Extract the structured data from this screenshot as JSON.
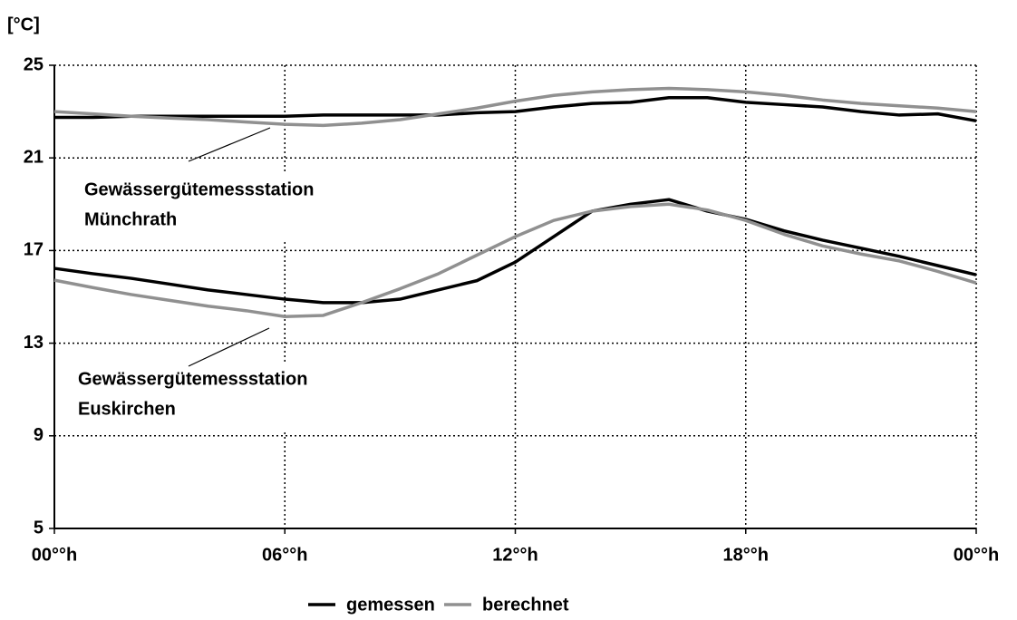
{
  "chart_data": {
    "type": "line",
    "y_label": "[°C]",
    "x": [
      0,
      1,
      2,
      3,
      4,
      5,
      6,
      7,
      8,
      9,
      10,
      11,
      12,
      13,
      14,
      15,
      16,
      17,
      18,
      19,
      20,
      21,
      22,
      23,
      24
    ],
    "series": [
      {
        "name": "gemessen",
        "color": "#000000",
        "values": [
          22.75,
          22.75,
          22.8,
          22.8,
          22.8,
          22.8,
          22.8,
          22.85,
          22.85,
          22.85,
          22.85,
          22.95,
          23.0,
          23.2,
          23.35,
          23.4,
          23.6,
          23.6,
          23.4,
          23.3,
          23.2,
          23.0,
          22.85,
          22.9,
          22.6
        ]
      },
      {
        "name": "berechnet",
        "color": "#909090",
        "values": [
          23.0,
          22.9,
          22.8,
          22.72,
          22.65,
          22.55,
          22.45,
          22.4,
          22.5,
          22.65,
          22.9,
          23.15,
          23.45,
          23.7,
          23.85,
          23.95,
          24.0,
          23.95,
          23.85,
          23.7,
          23.5,
          23.35,
          23.25,
          23.15,
          23.0
        ]
      },
      {
        "name": "gemessen",
        "color": "#000000",
        "values": [
          16.23,
          16.0,
          15.8,
          15.55,
          15.3,
          15.1,
          14.9,
          14.75,
          14.75,
          14.9,
          15.3,
          15.7,
          16.5,
          17.6,
          18.7,
          19.0,
          19.2,
          18.7,
          18.35,
          17.85,
          17.45,
          17.1,
          16.75,
          16.35,
          15.95
        ]
      },
      {
        "name": "berechnet",
        "color": "#909090",
        "values": [
          15.72,
          15.4,
          15.1,
          14.85,
          14.6,
          14.4,
          14.15,
          14.2,
          14.75,
          15.35,
          16.0,
          16.8,
          17.6,
          18.3,
          18.7,
          18.9,
          19.0,
          18.75,
          18.3,
          17.7,
          17.2,
          16.85,
          16.55,
          16.1,
          15.6
        ]
      }
    ],
    "annotations": [
      {
        "lines": [
          "Gewässergütemessstation",
          "Münchrath"
        ]
      },
      {
        "lines": [
          "Gewässergütemessstation",
          "Euskirchen"
        ]
      }
    ],
    "xlim": [
      0,
      24
    ],
    "xticks": [
      {
        "value": 0,
        "label": "00°°h"
      },
      {
        "value": 6,
        "label": "06°°h"
      },
      {
        "value": 12,
        "label": "12°°h"
      },
      {
        "value": 18,
        "label": "18°°h"
      },
      {
        "value": 24,
        "label": "00°°h"
      }
    ],
    "ylim": [
      5,
      25
    ],
    "yticks": [
      5,
      9,
      13,
      17,
      21,
      25
    ],
    "grid": true
  }
}
